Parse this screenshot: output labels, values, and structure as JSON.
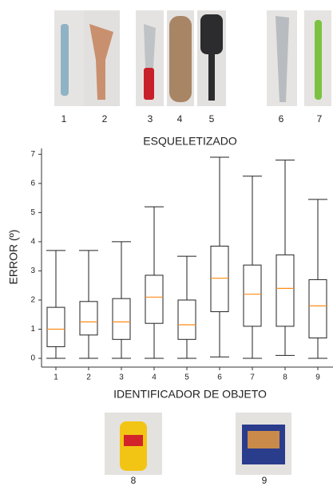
{
  "photo_labels": {
    "top": [
      "1",
      "2",
      "3",
      "4",
      "5",
      "6",
      "7"
    ],
    "bottom": [
      "8",
      "9"
    ]
  },
  "chart_data": {
    "type": "box",
    "title": "ESQUELETIZADO",
    "x_label": "IDENTIFICADOR DE OBJETO",
    "y_label": "ERROR (º)",
    "categories": [
      "1",
      "2",
      "3",
      "4",
      "5",
      "6",
      "7",
      "8",
      "9"
    ],
    "whisker_low": [
      0,
      0,
      0,
      0,
      0,
      0.05,
      0,
      0.1,
      0
    ],
    "q1": [
      0.4,
      0.8,
      0.65,
      1.2,
      0.65,
      1.6,
      1.1,
      1.1,
      0.7
    ],
    "median": [
      1.0,
      1.25,
      1.25,
      2.1,
      1.15,
      2.75,
      2.2,
      2.4,
      1.8
    ],
    "q3": [
      1.75,
      1.95,
      2.05,
      2.85,
      2.0,
      3.85,
      3.2,
      3.55,
      2.7
    ],
    "whisker_high": [
      3.7,
      3.7,
      4.0,
      5.2,
      3.5,
      6.9,
      6.25,
      6.8,
      5.45
    ],
    "box_color": "#222222",
    "median_color": "#ff8c1a",
    "ylim": [
      -0.3,
      7.2
    ],
    "yticks": [
      0,
      1,
      2,
      3,
      4,
      5,
      6,
      7
    ]
  }
}
